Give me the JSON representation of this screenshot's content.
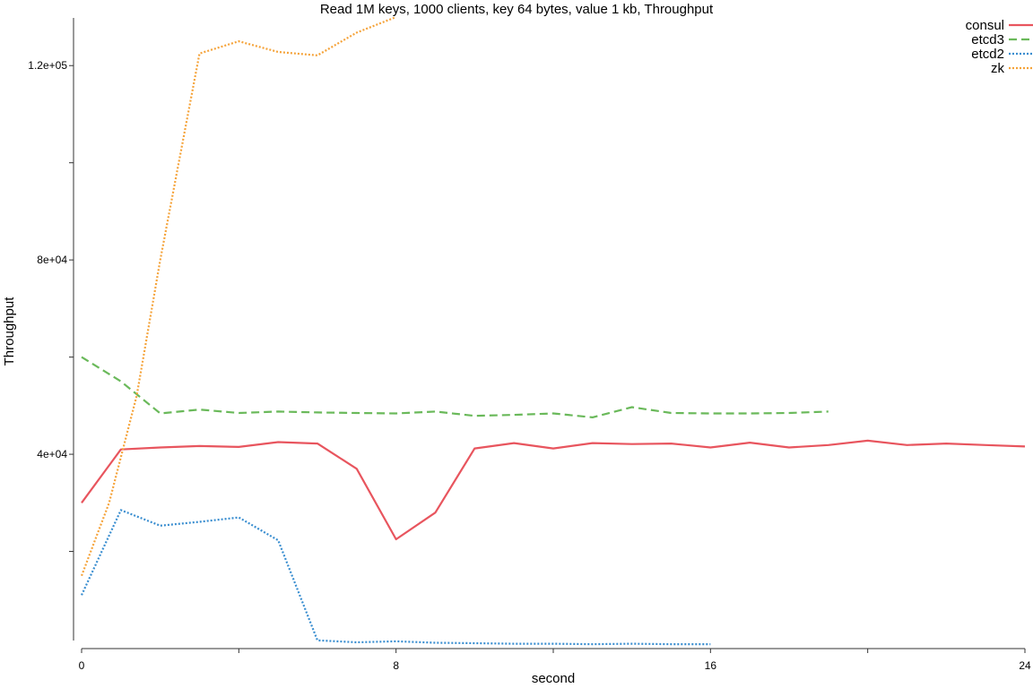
{
  "chart_data": {
    "type": "line",
    "title": "Read 1M keys, 1000 clients, key 64 bytes, value 1 kb, Throughput",
    "xlabel": "second",
    "ylabel": "Throughput",
    "xlim": [
      0,
      24
    ],
    "ylim": [
      0,
      130000
    ],
    "xticks": [
      0,
      4,
      8,
      12,
      16,
      20,
      24
    ],
    "xtick_labels": [
      "0",
      "",
      "8",
      "",
      "16",
      "",
      "24"
    ],
    "yticks": [
      20000,
      40000,
      60000,
      80000,
      100000,
      120000
    ],
    "ytick_labels": [
      "",
      "4e+04",
      "",
      "8e+04",
      "",
      "1.2e+05"
    ],
    "grid": false,
    "legend_position": "top-right",
    "series": [
      {
        "name": "consul",
        "color": "#e8555e",
        "dash": "solid",
        "x": [
          0,
          1,
          2,
          3,
          4,
          5,
          6,
          7,
          8,
          9,
          10,
          11,
          12,
          13,
          14,
          15,
          16,
          17,
          18,
          19,
          20,
          21,
          22,
          23,
          24
        ],
        "y": [
          30000,
          41000,
          41400,
          41700,
          41500,
          42500,
          42200,
          37000,
          22500,
          28000,
          41200,
          42300,
          41200,
          42300,
          42100,
          42200,
          41400,
          42400,
          41400,
          41900,
          42800,
          41900,
          42200,
          41900,
          41600
        ]
      },
      {
        "name": "etcd3",
        "color": "#6ab95a",
        "dash": "dashed",
        "x": [
          0,
          1,
          2,
          3,
          4,
          5,
          6,
          7,
          8,
          9,
          10,
          11,
          12,
          13,
          14,
          15,
          16,
          17,
          18,
          19
        ],
        "y": [
          60000,
          55000,
          48400,
          49200,
          48500,
          48800,
          48600,
          48500,
          48400,
          48800,
          47900,
          48100,
          48400,
          47600,
          49700,
          48500,
          48400,
          48400,
          48500,
          48800
        ]
      },
      {
        "name": "etcd2",
        "color": "#3a8ed0",
        "dash": "dotted",
        "x": [
          0,
          1,
          2,
          3,
          4,
          5,
          6,
          7,
          8,
          9,
          10,
          11,
          12,
          13,
          14,
          15,
          16
        ],
        "y": [
          11000,
          28500,
          25300,
          26100,
          27000,
          22300,
          1700,
          1300,
          1500,
          1200,
          1100,
          1000,
          1000,
          900,
          1000,
          900,
          900
        ]
      },
      {
        "name": "zk",
        "color": "#f5a33a",
        "dash": "dotted",
        "x": [
          0,
          0.7,
          1.4,
          2,
          3,
          4,
          5,
          6,
          7,
          8
        ],
        "y": [
          15000,
          30000,
          52000,
          80000,
          122500,
          125000,
          122800,
          122100,
          126800,
          130000
        ]
      }
    ]
  }
}
